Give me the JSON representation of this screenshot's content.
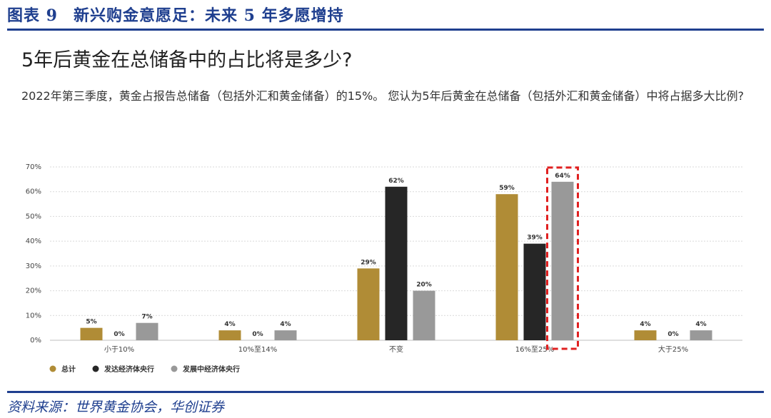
{
  "header": {
    "figure_no": "图表 9",
    "figure_title": "新兴购金意愿足：未来 5 年多愿增持"
  },
  "source": "资料来源：世界黄金协会，华创证券",
  "chart_data": {
    "type": "bar",
    "title": "5年后黄金在总储备中的占比将是多少?",
    "subtitle": "2022年第三季度，黄金占报告总储备（包括外汇和黄金储备）的15%。 您认为5年后黄金在总储备（包括外汇和黄金储备）中将占据多大比例?",
    "categories": [
      "小于10%",
      "10%至14%",
      "不变",
      "16%至25%",
      "大于25%"
    ],
    "series": [
      {
        "name": "总计",
        "values": [
          5,
          4,
          29,
          59,
          4
        ],
        "labels": [
          "5%",
          "4%",
          "29%",
          "59%",
          "4%"
        ],
        "color": "#b08c36"
      },
      {
        "name": "发达经济体央行",
        "values": [
          0,
          0,
          62,
          39,
          0
        ],
        "labels": [
          "0%",
          "0%",
          "62%",
          "39%",
          "0%"
        ],
        "color": "#262626"
      },
      {
        "name": "发展中经济体央行",
        "values": [
          7,
          4,
          20,
          64,
          4
        ],
        "labels": [
          "7%",
          "4%",
          "20%",
          "64%",
          "4%"
        ],
        "color": "#999999"
      }
    ],
    "ylim": [
      0,
      70
    ],
    "yticks": [
      0,
      10,
      20,
      30,
      40,
      50,
      60,
      70
    ],
    "ytick_labels": [
      "0%",
      "10%",
      "20%",
      "30%",
      "40%",
      "50%",
      "60%",
      "70%"
    ],
    "grid": true,
    "legend_position": "bottom-left",
    "highlight": {
      "category_index": 3,
      "series_index": 2,
      "color": "#e02020"
    }
  }
}
